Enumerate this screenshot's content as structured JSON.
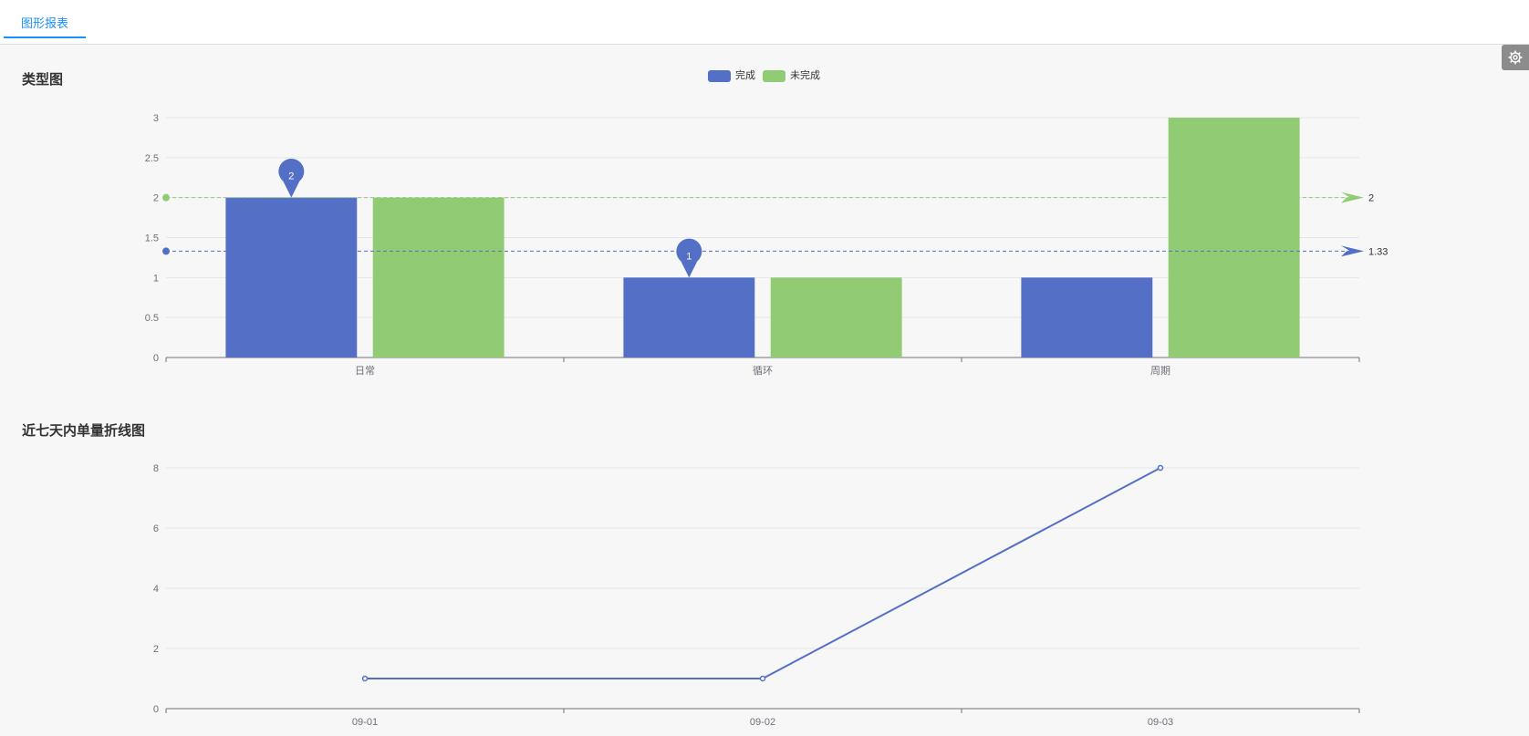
{
  "header": {
    "tab_label": "图形报表"
  },
  "settings": {
    "icon": "gear-icon"
  },
  "colors": {
    "blue": "#5470c6",
    "green": "#91cc75",
    "accent": "#1890ff"
  },
  "chart_data": [
    {
      "type": "bar",
      "title": "类型图",
      "categories": [
        "日常",
        "循环",
        "周期"
      ],
      "series": [
        {
          "name": "完成",
          "values": [
            2,
            1,
            1
          ],
          "color": "#5470c6",
          "max_pin": "2",
          "min_pin": "1",
          "average": 1.33,
          "average_label": "1.33"
        },
        {
          "name": "未完成",
          "values": [
            2,
            1,
            3
          ],
          "color": "#91cc75",
          "average": 2,
          "average_label": "2"
        }
      ],
      "ylim": [
        0,
        3
      ],
      "yticks": [
        "0",
        "0.5",
        "1",
        "1.5",
        "2",
        "2.5",
        "3"
      ],
      "legend": "top-center",
      "grid": true
    },
    {
      "type": "line",
      "title": "近七天内单量折线图",
      "x": [
        "09-01",
        "09-02",
        "09-03"
      ],
      "series": [
        {
          "values": [
            1,
            1,
            8
          ],
          "color": "#5470c6"
        }
      ],
      "ylim": [
        0,
        8
      ],
      "yticks": [
        "0",
        "2",
        "4",
        "6",
        "8"
      ],
      "grid": true
    }
  ]
}
